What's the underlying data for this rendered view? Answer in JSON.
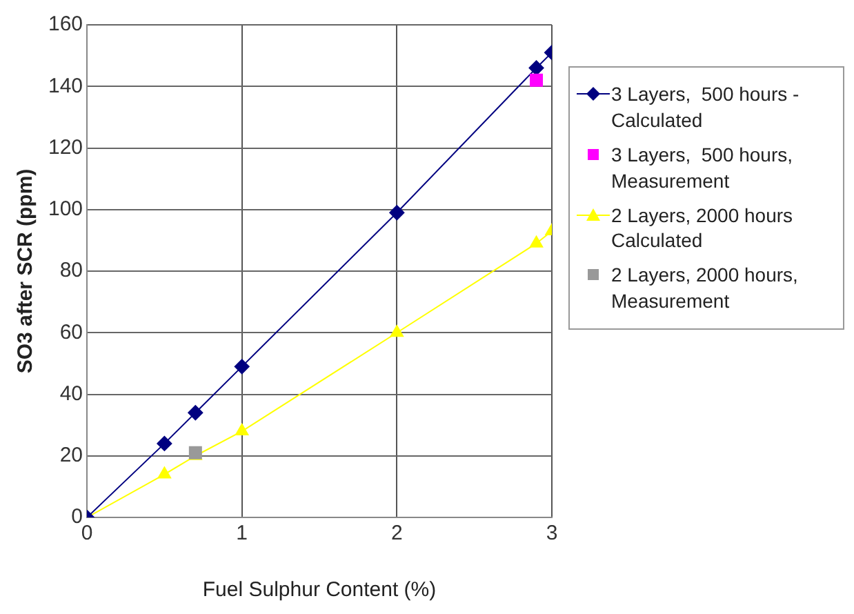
{
  "chart_data": {
    "type": "line",
    "xlabel": "Fuel Sulphur Content (%)",
    "ylabel": "SO3 after SCR (ppm)",
    "xlim": [
      0,
      3
    ],
    "xticks": [
      0,
      1,
      2,
      3
    ],
    "ylim": [
      0,
      160
    ],
    "yticks": [
      0,
      20,
      40,
      60,
      80,
      100,
      120,
      140,
      160
    ],
    "grid": true,
    "legend": "right",
    "series": [
      {
        "name": "3 Layers,  500 hours - Calculated",
        "type": "line",
        "marker": "diamond",
        "color": "#000080",
        "x": [
          0,
          0.5,
          0.7,
          1,
          2,
          2.9,
          3
        ],
        "values": [
          0,
          24,
          34,
          49,
          99,
          146,
          151
        ]
      },
      {
        "name": "3 Layers,  500 hours, Measurement",
        "type": "scatter",
        "marker": "square",
        "color": "#ff00ff",
        "x": [
          2.9
        ],
        "values": [
          142
        ]
      },
      {
        "name": "2 Layers, 2000 hours Calculated",
        "type": "line",
        "marker": "triangle",
        "color": "#ffff00",
        "x": [
          0,
          0.5,
          0.7,
          1,
          2,
          2.9,
          3
        ],
        "values": [
          0,
          14,
          20,
          28,
          60,
          89,
          93
        ]
      },
      {
        "name": "2 Layers, 2000 hours, Measurement",
        "type": "scatter",
        "marker": "square",
        "color": "#999999",
        "x": [
          0.7
        ],
        "values": [
          21
        ]
      }
    ]
  }
}
